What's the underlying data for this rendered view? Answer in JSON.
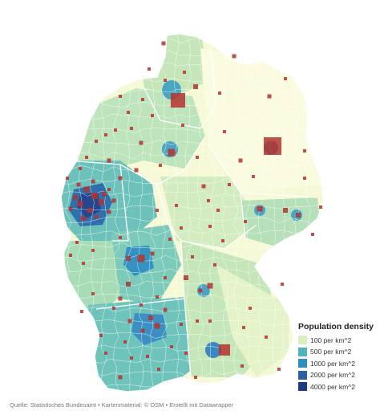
{
  "legend": {
    "title": "Population density",
    "items": [
      {
        "label": "100 per km^2",
        "color": "#d9efc0"
      },
      {
        "label": "500 per km^2",
        "color": "#4fb5b8"
      },
      {
        "label": "1000 per km^2",
        "color": "#2b8fbf"
      },
      {
        "label": "2000 per km^2",
        "color": "#2c5fa3"
      },
      {
        "label": "4000 per km^2",
        "color": "#1f3a87"
      }
    ]
  },
  "credit": "Quelle: Statistisches Bundesamt • Kartenmaterial: © OSM • Erstellt mit Datawrapper",
  "colors": {
    "background": "#ffffff",
    "low_density": "#f6f9d6",
    "mid_density": "#a7d8b8",
    "high_density": "#3b9fc4",
    "city_marker": "#b5322e",
    "border": "#ffffff"
  }
}
